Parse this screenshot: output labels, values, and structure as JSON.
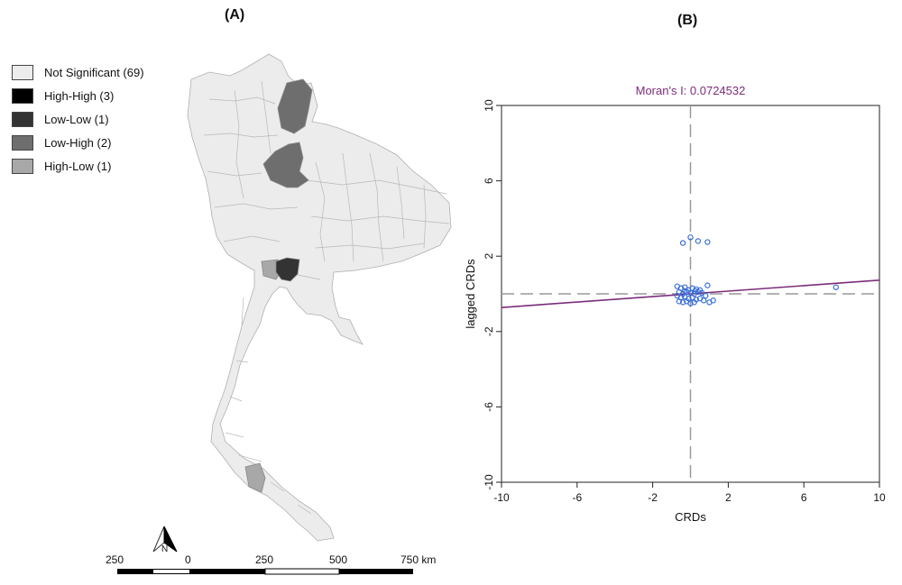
{
  "panel_a": {
    "label": "(A)",
    "legend": [
      {
        "label": "Not Significant (69)",
        "color": "#ececec"
      },
      {
        "label": "High-High (3)",
        "color": "#000000"
      },
      {
        "label": "Low-Low (1)",
        "color": "#333333"
      },
      {
        "label": "Low-High (2)",
        "color": "#6e6e6e"
      },
      {
        "label": "High-Low (1)",
        "color": "#a8a8a8"
      }
    ],
    "north_label": "N",
    "scale_bar": {
      "ticks": [
        "250",
        "0",
        "250",
        "500",
        "750 km"
      ]
    }
  },
  "panel_b": {
    "label": "(B)"
  },
  "chart_data": {
    "type": "scatter",
    "title": "Moran's I: 0.0724532",
    "xlabel": "CRDs",
    "ylabel": "lagged CRDs",
    "xlim": [
      -10,
      10
    ],
    "ylim": [
      -10,
      10
    ],
    "x_ticks": [
      -10,
      -6,
      -2,
      2,
      6,
      10
    ],
    "y_ticks": [
      -10,
      -6,
      -2,
      2,
      6,
      10
    ],
    "x_tick_labels": [
      "-10",
      "-6",
      "-2",
      "2",
      "6",
      "10"
    ],
    "y_tick_labels": [
      "-10",
      "-6",
      "-2",
      "2",
      "6",
      "10"
    ],
    "grid": false,
    "point_color": "#3a6fd8",
    "regression_color": "#7a2d7a",
    "reference_lines": {
      "x": 0,
      "y": 0,
      "style": "dashed",
      "color": "#999999"
    },
    "regression": {
      "slope": 0.0724532,
      "intercept": 0
    },
    "points": [
      {
        "x": -0.4,
        "y": 2.7
      },
      {
        "x": 0.0,
        "y": 3.0
      },
      {
        "x": 0.4,
        "y": 2.8
      },
      {
        "x": 0.9,
        "y": 2.75
      },
      {
        "x": 7.7,
        "y": 0.35
      },
      {
        "x": -0.7,
        "y": 0.4
      },
      {
        "x": -0.5,
        "y": 0.3
      },
      {
        "x": -0.3,
        "y": 0.35
      },
      {
        "x": -0.1,
        "y": 0.2
      },
      {
        "x": 0.1,
        "y": 0.3
      },
      {
        "x": 0.3,
        "y": 0.25
      },
      {
        "x": 0.5,
        "y": 0.2
      },
      {
        "x": 0.9,
        "y": 0.45
      },
      {
        "x": -0.6,
        "y": 0.1
      },
      {
        "x": -0.4,
        "y": 0.0
      },
      {
        "x": -0.2,
        "y": 0.1
      },
      {
        "x": 0.0,
        "y": 0.05
      },
      {
        "x": 0.2,
        "y": 0.0
      },
      {
        "x": 0.4,
        "y": 0.1
      },
      {
        "x": 0.6,
        "y": 0.05
      },
      {
        "x": 0.8,
        "y": -0.1
      },
      {
        "x": -0.7,
        "y": -0.1
      },
      {
        "x": -0.5,
        "y": -0.2
      },
      {
        "x": -0.3,
        "y": -0.15
      },
      {
        "x": -0.1,
        "y": -0.25
      },
      {
        "x": 0.1,
        "y": -0.2
      },
      {
        "x": 0.3,
        "y": -0.3
      },
      {
        "x": 0.5,
        "y": -0.25
      },
      {
        "x": 0.7,
        "y": -0.35
      },
      {
        "x": -0.6,
        "y": -0.4
      },
      {
        "x": -0.4,
        "y": -0.45
      },
      {
        "x": -0.2,
        "y": -0.4
      },
      {
        "x": 0.0,
        "y": -0.5
      },
      {
        "x": 0.2,
        "y": -0.45
      },
      {
        "x": 1.0,
        "y": -0.45
      },
      {
        "x": 1.2,
        "y": -0.35
      },
      {
        "x": -0.3,
        "y": 0.15
      },
      {
        "x": 0.25,
        "y": 0.15
      }
    ]
  }
}
